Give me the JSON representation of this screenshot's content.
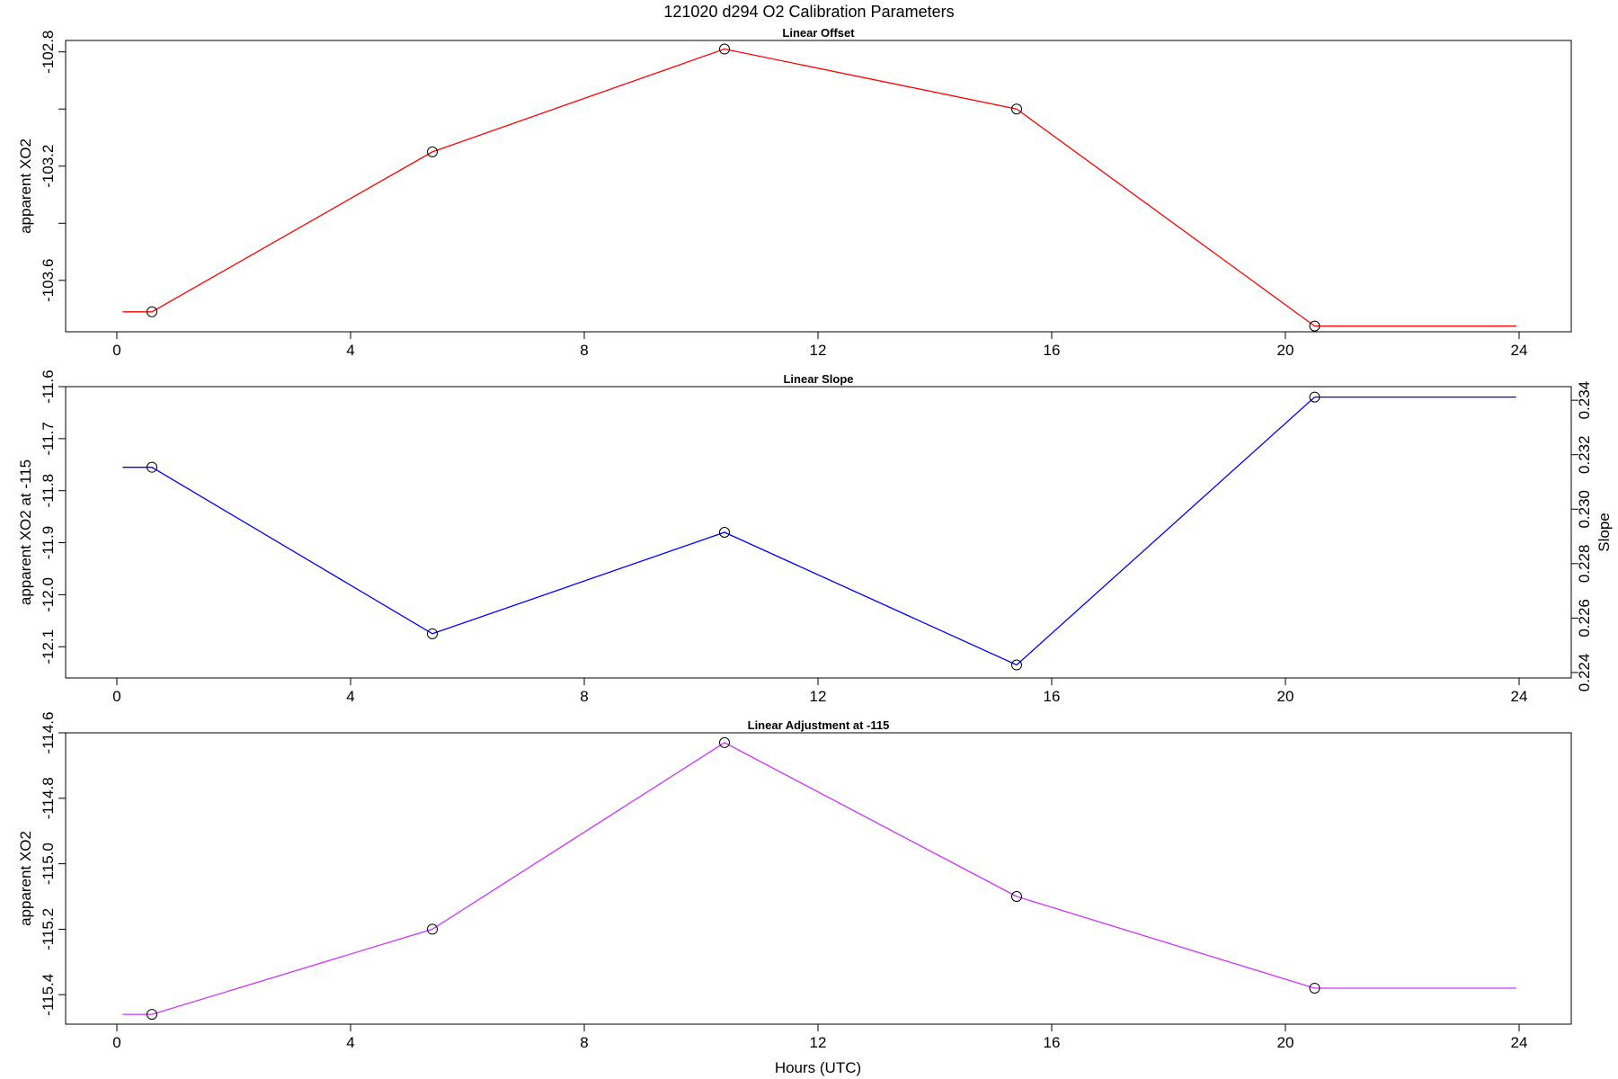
{
  "figure": {
    "title": "121020   d294   O2 Calibration Parameters",
    "xlabel": "Hours (UTC)"
  },
  "chart_data": [
    {
      "type": "line",
      "title": "Linear Offset",
      "xlabel": "",
      "ylabel": "apparent XO2",
      "xlim": [
        0,
        24
      ],
      "x_ticks": [
        0,
        4,
        8,
        12,
        16,
        20,
        24
      ],
      "ylim": [
        -103.78,
        -102.76
      ],
      "y_ticks": [
        -103.6,
        -103.4,
        -103.2,
        -103.0,
        -102.8
      ],
      "y_tick_labels": [
        "-103.6",
        "",
        "-103.2",
        "",
        "-102.8"
      ],
      "line_color": "#ff0000",
      "line_x": [
        0.1,
        0.6,
        5.4,
        10.4,
        15.4,
        20.5,
        23.95
      ],
      "line_y": [
        -103.71,
        -103.71,
        -103.15,
        -102.79,
        -103.0,
        -103.76,
        -103.76
      ],
      "points": {
        "x": [
          0.6,
          5.4,
          10.4,
          15.4,
          20.5
        ],
        "y": [
          -103.71,
          -103.15,
          -102.79,
          -103.0,
          -103.76
        ]
      }
    },
    {
      "type": "line",
      "title": "Linear Slope",
      "xlabel": "",
      "ylabel": "apparent XO2 at -115",
      "ylabel_right": "Slope",
      "xlim": [
        0,
        24
      ],
      "x_ticks": [
        0,
        4,
        8,
        12,
        16,
        20,
        24
      ],
      "ylim": [
        -12.16,
        -11.6
      ],
      "y_ticks": [
        -12.1,
        -12.0,
        -11.9,
        -11.8,
        -11.7,
        -11.6
      ],
      "y_tick_labels": [
        "-12.1",
        "-12.0",
        "-11.9",
        "-11.8",
        "-11.7",
        "-11.6"
      ],
      "y2lim": [
        0.2238,
        0.2345
      ],
      "y2_ticks": [
        0.224,
        0.226,
        0.228,
        0.23,
        0.232,
        0.234
      ],
      "y2_tick_labels": [
        "0.224",
        "0.226",
        "0.228",
        "0.230",
        "0.232",
        "0.234"
      ],
      "line_color": "#0000ff",
      "line_x": [
        0.1,
        0.6,
        5.4,
        10.4,
        15.4,
        20.5,
        23.95
      ],
      "line_y": [
        -11.755,
        -11.755,
        -12.075,
        -11.88,
        -12.135,
        -11.62,
        -11.62
      ],
      "points": {
        "x": [
          0.6,
          5.4,
          10.4,
          15.4,
          20.5
        ],
        "y": [
          -11.755,
          -12.075,
          -11.88,
          -12.135,
          -11.62
        ]
      }
    },
    {
      "type": "line",
      "title": "Linear Adjustment at -115",
      "xlabel": "",
      "ylabel": "apparent XO2",
      "xlim": [
        0,
        24
      ],
      "x_ticks": [
        0,
        4,
        8,
        12,
        16,
        20,
        24
      ],
      "ylim": [
        -115.49,
        -114.6
      ],
      "y_ticks": [
        -115.4,
        -115.2,
        -115.0,
        -114.8,
        -114.6
      ],
      "y_tick_labels": [
        "-115.4",
        "-115.2",
        "-115.0",
        "-114.8",
        "-114.6"
      ],
      "line_color": "#cc33ff",
      "line_x": [
        0.1,
        0.6,
        5.4,
        10.4,
        15.4,
        20.5,
        23.95
      ],
      "line_y": [
        -115.46,
        -115.46,
        -115.2,
        -114.63,
        -115.1,
        -115.38,
        -115.38
      ],
      "points": {
        "x": [
          0.6,
          5.4,
          10.4,
          15.4,
          20.5
        ],
        "y": [
          -115.46,
          -115.2,
          -114.63,
          -115.1,
          -115.38
        ]
      }
    }
  ]
}
